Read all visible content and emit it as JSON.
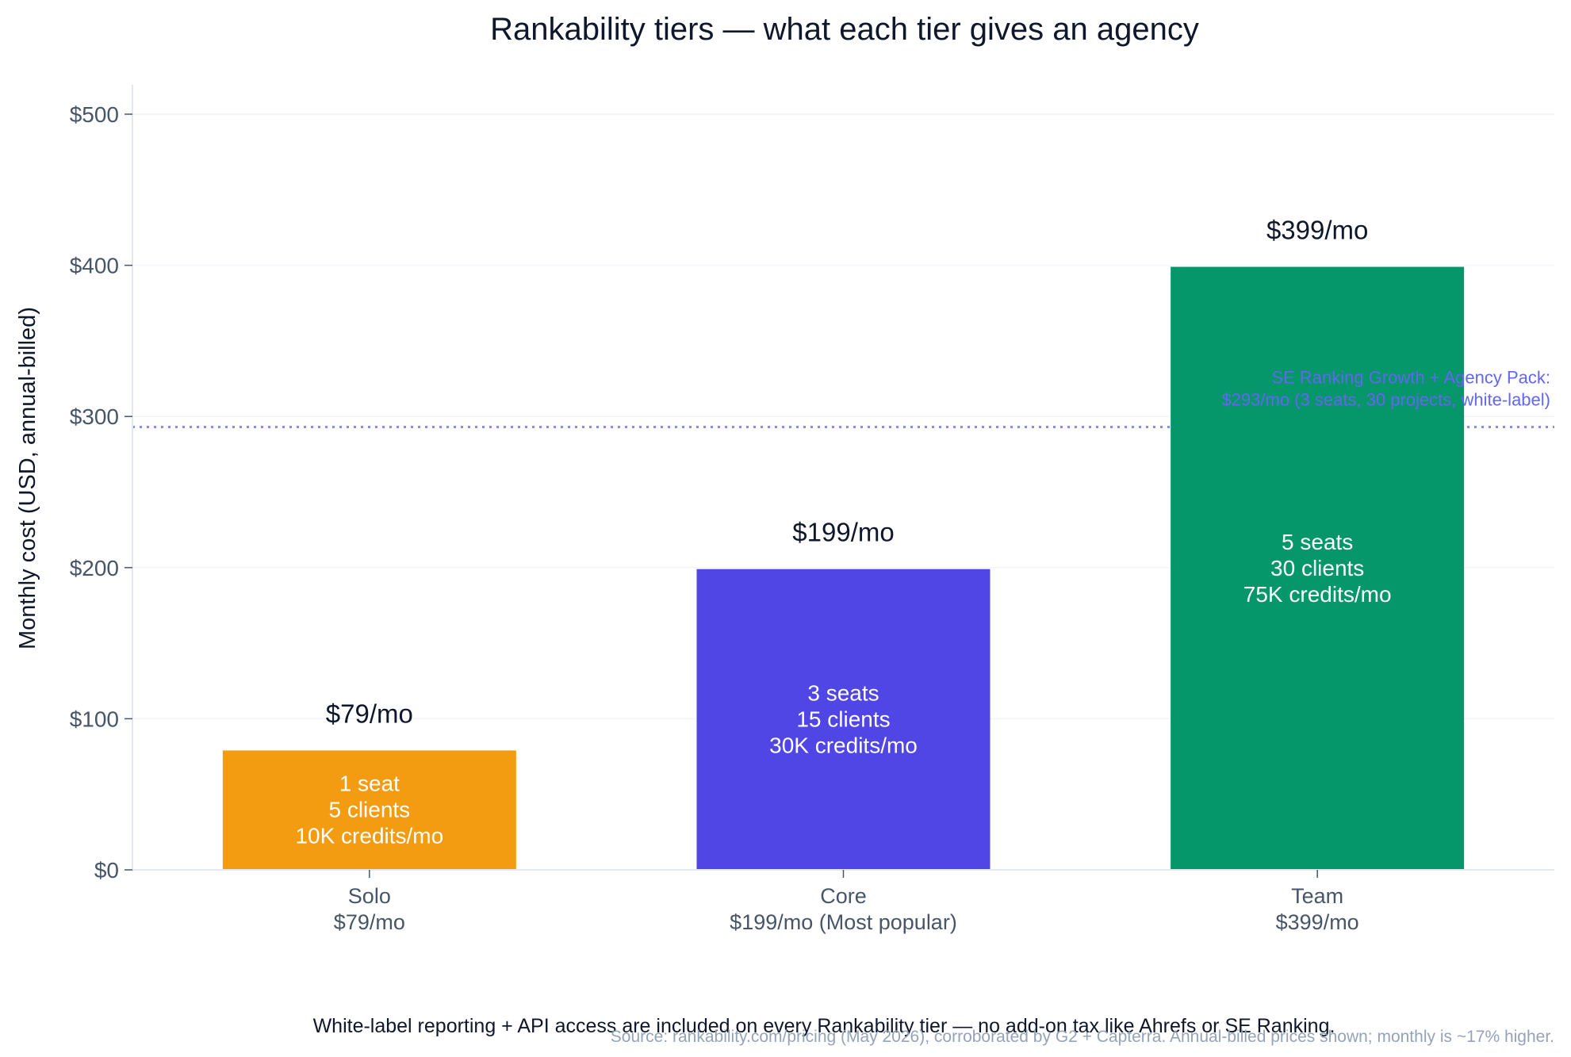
{
  "chart_data": {
    "type": "bar",
    "title": "Rankability tiers — what each tier gives an agency",
    "xlabel": "",
    "ylabel": "Monthly cost (USD, annual-billed)",
    "ylim": [
      0,
      520
    ],
    "yticks": [
      0,
      100,
      200,
      300,
      400,
      500
    ],
    "ytick_labels": [
      "$0",
      "$100",
      "$200",
      "$300",
      "$400",
      "$500"
    ],
    "grid": true,
    "categories": [
      "Solo",
      "Core",
      "Team"
    ],
    "category_sublabels": [
      "$79/mo",
      "$199/mo (Most popular)",
      "$399/mo"
    ],
    "values": [
      79,
      199,
      399
    ],
    "value_labels": [
      "$79/mo",
      "$199/mo",
      "$399/mo"
    ],
    "bar_colors": [
      "#f39c12",
      "#4f46e5",
      "#059669"
    ],
    "bar_annotations": [
      [
        "1 seat",
        "5 clients",
        "10K credits/mo"
      ],
      [
        "3 seats",
        "15 clients",
        "30K credits/mo"
      ],
      [
        "5 seats",
        "30 clients",
        "75K credits/mo"
      ]
    ],
    "reference_line": {
      "value": 293,
      "color": "#818cf8",
      "label_lines": [
        "SE Ranking Growth + Agency Pack:",
        "$293/mo (3 seats, 30 projects, white-label)"
      ],
      "label_color": "#6366f1"
    },
    "footnote": "White-label reporting + API access are included on every Rankability tier — no add-on tax like Ahrefs or SE Ranking.",
    "source": "Source: rankability.com/pricing (May 2026), corroborated by G2 + Capterra. Annual-billed prices shown; monthly is ~17% higher."
  }
}
